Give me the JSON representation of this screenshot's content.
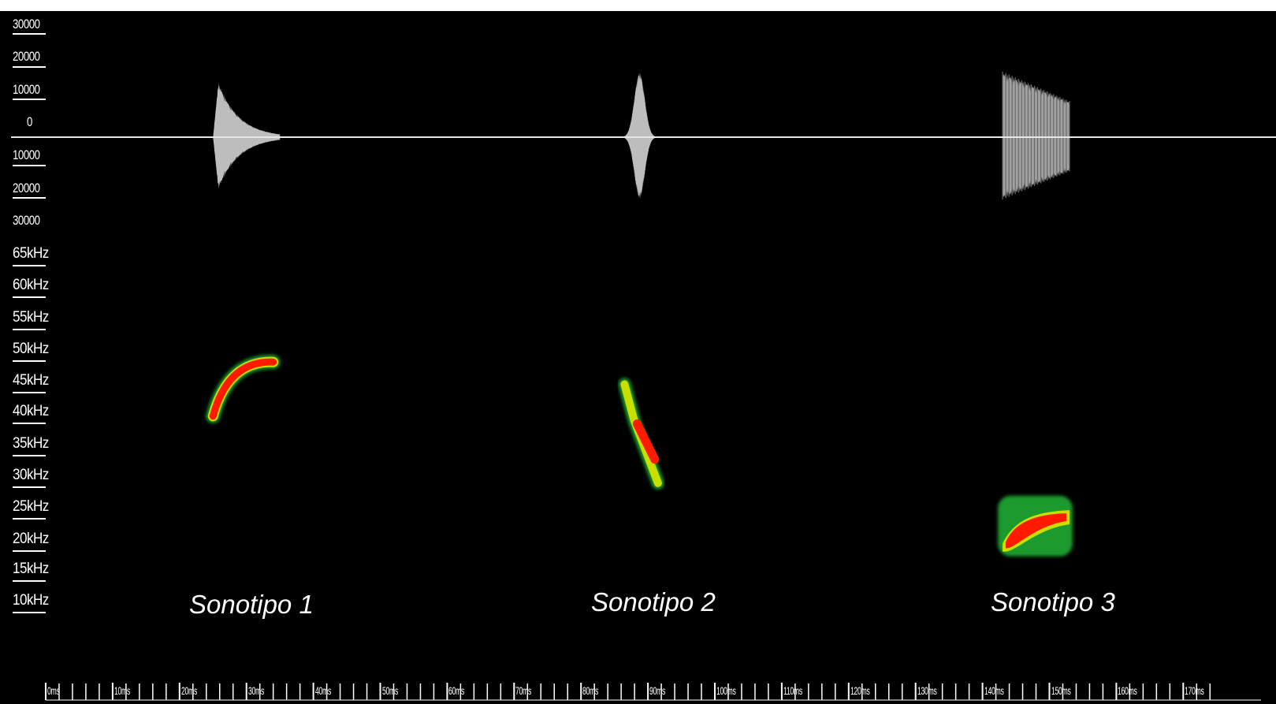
{
  "chart_data": [
    {
      "type": "area",
      "title": "",
      "amplitude_ticks": [
        "30000",
        "20000",
        "10000",
        "0",
        "10000",
        "20000",
        "30000"
      ],
      "amplitude_values": [
        30000,
        20000,
        10000,
        0,
        -10000,
        -20000,
        -30000
      ],
      "ylim": [
        -30000,
        30000
      ],
      "time_unit": "ms",
      "series": [
        {
          "label": "Sonotipo 1",
          "time_range_ms": [
            25,
            35
          ],
          "peak_amplitude": 17000,
          "color": "#bdbdbd"
        },
        {
          "label": "Sonotipo 2",
          "time_range_ms": [
            86.5,
            91.5
          ],
          "peak_amplitude": 20000,
          "color": "#bdbdbd"
        },
        {
          "label": "Sonotipo 3",
          "time_range_ms": [
            143,
            153
          ],
          "peak_amplitude": 20000,
          "color": "#bdbdbd"
        }
      ]
    },
    {
      "type": "heatmap",
      "title": "",
      "frequency_ticks": [
        "65kHz",
        "60kHz",
        "55kHz",
        "50kHz",
        "45kHz",
        "40kHz",
        "35kHz",
        "30kHz",
        "25kHz",
        "20kHz",
        "15kHz",
        "10kHz"
      ],
      "frequency_values": [
        65,
        60,
        55,
        50,
        45,
        40,
        35,
        30,
        25,
        20,
        15,
        10
      ],
      "ylim_khz": [
        10,
        65
      ],
      "xlim_ms": [
        0,
        180
      ],
      "time_ticks": [
        "0ms",
        "10ms",
        "20ms",
        "30ms",
        "40ms",
        "50ms",
        "60ms",
        "70ms",
        "80ms",
        "90ms",
        "100ms",
        "110ms",
        "120ms",
        "130ms",
        "140ms",
        "150ms",
        "160ms",
        "170ms"
      ],
      "time_values": [
        0,
        10,
        20,
        30,
        40,
        50,
        60,
        70,
        80,
        90,
        100,
        110,
        120,
        130,
        140,
        150,
        160,
        170
      ],
      "colormap": [
        "#000000",
        "#0a5a2a",
        "#1e9a2e",
        "#c8e000",
        "#ff1a00"
      ],
      "calls": [
        {
          "label": "Sonotipo 1",
          "start_ms": 25,
          "end_ms": 34,
          "start_khz": 41,
          "end_khz": 49.5,
          "shape": "convex-up"
        },
        {
          "label": "Sonotipo 2",
          "start_ms": 86.5,
          "end_ms": 91.5,
          "start_khz": 46,
          "end_khz": 30.5,
          "shape": "down-sweep"
        },
        {
          "label": "Sonotipo 3",
          "start_ms": 143,
          "end_ms": 153,
          "start_khz": 22,
          "end_khz": 25.5,
          "shape": "constant-frequency"
        }
      ]
    }
  ],
  "labels": {
    "sonotipo1": "Sonotipo 1",
    "sonotipo2": "Sonotipo 2",
    "sonotipo3": "Sonotipo 3"
  },
  "colors": {
    "background": "#000000",
    "waveform": "#bdbdbd",
    "baseline": "#e6e6e6",
    "text": "#ffffff"
  }
}
